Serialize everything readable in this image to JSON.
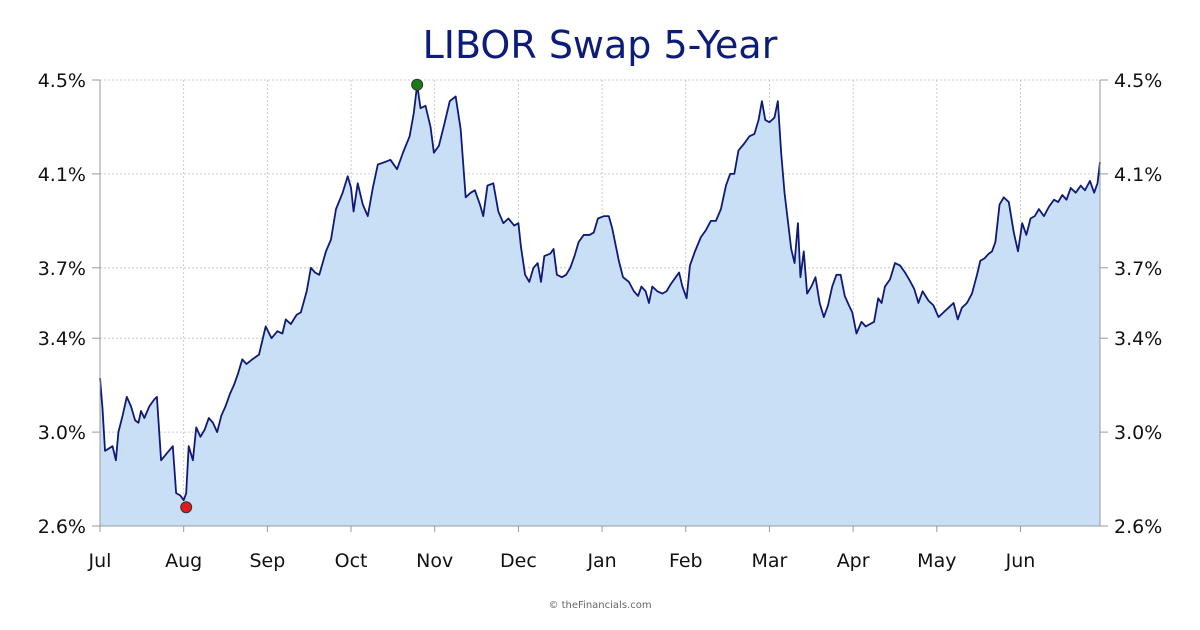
{
  "chart_data": {
    "type": "area",
    "title": "LIBOR Swap 5-Year",
    "credit": "© theFinancials.com",
    "ylim": [
      2.6,
      4.5
    ],
    "y_ticks": [
      4.5,
      4.1,
      3.7,
      3.4,
      3.0,
      2.6
    ],
    "y_tick_labels": [
      "4.5%",
      "4.1%",
      "3.7%",
      "3.4%",
      "3.0%",
      "2.6%"
    ],
    "y_axis_sides": "left-and-right",
    "grid": true,
    "x_ticks": [
      {
        "label": "Jul",
        "x": 0
      },
      {
        "label": "Aug",
        "x": 1
      },
      {
        "label": "Sep",
        "x": 2
      },
      {
        "label": "Oct",
        "x": 3
      },
      {
        "label": "Nov",
        "x": 4
      },
      {
        "label": "Dec",
        "x": 5
      },
      {
        "label": "Jan",
        "x": 6
      },
      {
        "label": "Feb",
        "x": 7
      },
      {
        "label": "Mar",
        "x": 8
      },
      {
        "label": "Apr",
        "x": 9
      },
      {
        "label": "May",
        "x": 10
      },
      {
        "label": "Jun",
        "x": 11
      }
    ],
    "xlim": [
      0,
      11.95
    ],
    "series": [
      {
        "values": [
          [
            0.0,
            3.23
          ],
          [
            0.03,
            3.1
          ],
          [
            0.06,
            2.92
          ],
          [
            0.15,
            2.94
          ],
          [
            0.19,
            2.88
          ],
          [
            0.22,
            3.0
          ],
          [
            0.27,
            3.07
          ],
          [
            0.32,
            3.15
          ],
          [
            0.37,
            3.11
          ],
          [
            0.42,
            3.05
          ],
          [
            0.46,
            3.04
          ],
          [
            0.49,
            3.09
          ],
          [
            0.53,
            3.06
          ],
          [
            0.59,
            3.11
          ],
          [
            0.65,
            3.14
          ],
          [
            0.68,
            3.15
          ],
          [
            0.73,
            2.88
          ],
          [
            0.8,
            2.91
          ],
          [
            0.87,
            2.94
          ],
          [
            0.91,
            2.74
          ],
          [
            0.96,
            2.73
          ],
          [
            1.0,
            2.71
          ],
          [
            1.03,
            2.74
          ],
          [
            1.06,
            2.94
          ],
          [
            1.11,
            2.88
          ],
          [
            1.15,
            3.02
          ],
          [
            1.2,
            2.98
          ],
          [
            1.25,
            3.01
          ],
          [
            1.3,
            3.06
          ],
          [
            1.35,
            3.04
          ],
          [
            1.4,
            3.0
          ],
          [
            1.45,
            3.07
          ],
          [
            1.5,
            3.11
          ],
          [
            1.55,
            3.16
          ],
          [
            1.6,
            3.2
          ],
          [
            1.65,
            3.25
          ],
          [
            1.7,
            3.31
          ],
          [
            1.75,
            3.29
          ],
          [
            1.82,
            3.31
          ],
          [
            1.9,
            3.33
          ],
          [
            1.98,
            3.45
          ],
          [
            2.05,
            3.4
          ],
          [
            2.12,
            3.43
          ],
          [
            2.18,
            3.42
          ],
          [
            2.22,
            3.48
          ],
          [
            2.28,
            3.46
          ],
          [
            2.35,
            3.5
          ],
          [
            2.4,
            3.51
          ],
          [
            2.47,
            3.6
          ],
          [
            2.52,
            3.7
          ],
          [
            2.57,
            3.68
          ],
          [
            2.62,
            3.67
          ],
          [
            2.7,
            3.77
          ],
          [
            2.76,
            3.82
          ],
          [
            2.82,
            3.95
          ],
          [
            2.9,
            4.02
          ],
          [
            2.96,
            4.09
          ],
          [
            3.0,
            4.04
          ],
          [
            3.03,
            3.94
          ],
          [
            3.08,
            4.06
          ],
          [
            3.14,
            3.97
          ],
          [
            3.2,
            3.92
          ],
          [
            3.26,
            4.04
          ],
          [
            3.32,
            4.14
          ],
          [
            3.4,
            4.15
          ],
          [
            3.47,
            4.16
          ],
          [
            3.55,
            4.12
          ],
          [
            3.62,
            4.19
          ],
          [
            3.7,
            4.26
          ],
          [
            3.75,
            4.36
          ],
          [
            3.79,
            4.48
          ],
          [
            3.83,
            4.38
          ],
          [
            3.89,
            4.39
          ],
          [
            3.95,
            4.3
          ],
          [
            3.99,
            4.19
          ],
          [
            4.05,
            4.22
          ],
          [
            4.12,
            4.32
          ],
          [
            4.18,
            4.41
          ],
          [
            4.25,
            4.43
          ],
          [
            4.31,
            4.29
          ],
          [
            4.37,
            4.0
          ],
          [
            4.43,
            4.02
          ],
          [
            4.48,
            4.03
          ],
          [
            4.54,
            3.97
          ],
          [
            4.58,
            3.92
          ],
          [
            4.63,
            4.05
          ],
          [
            4.7,
            4.06
          ],
          [
            4.76,
            3.94
          ],
          [
            4.82,
            3.89
          ],
          [
            4.88,
            3.91
          ],
          [
            4.95,
            3.88
          ],
          [
            5.0,
            3.89
          ],
          [
            5.03,
            3.79
          ],
          [
            5.08,
            3.67
          ],
          [
            5.13,
            3.64
          ],
          [
            5.18,
            3.7
          ],
          [
            5.23,
            3.72
          ],
          [
            5.27,
            3.64
          ],
          [
            5.31,
            3.75
          ],
          [
            5.38,
            3.76
          ],
          [
            5.42,
            3.78
          ],
          [
            5.46,
            3.67
          ],
          [
            5.52,
            3.66
          ],
          [
            5.57,
            3.67
          ],
          [
            5.62,
            3.7
          ],
          [
            5.67,
            3.75
          ],
          [
            5.72,
            3.81
          ],
          [
            5.78,
            3.84
          ],
          [
            5.85,
            3.84
          ],
          [
            5.9,
            3.85
          ],
          [
            5.95,
            3.91
          ],
          [
            6.02,
            3.92
          ],
          [
            6.08,
            3.92
          ],
          [
            6.12,
            3.87
          ],
          [
            6.16,
            3.8
          ],
          [
            6.2,
            3.73
          ],
          [
            6.25,
            3.66
          ],
          [
            6.32,
            3.64
          ],
          [
            6.38,
            3.6
          ],
          [
            6.43,
            3.58
          ],
          [
            6.47,
            3.62
          ],
          [
            6.52,
            3.6
          ],
          [
            6.56,
            3.55
          ],
          [
            6.6,
            3.62
          ],
          [
            6.66,
            3.6
          ],
          [
            6.72,
            3.59
          ],
          [
            6.77,
            3.6
          ],
          [
            6.82,
            3.63
          ],
          [
            6.88,
            3.66
          ],
          [
            6.92,
            3.68
          ],
          [
            6.96,
            3.62
          ],
          [
            7.01,
            3.57
          ],
          [
            7.05,
            3.71
          ],
          [
            7.11,
            3.77
          ],
          [
            7.18,
            3.83
          ],
          [
            7.24,
            3.86
          ],
          [
            7.3,
            3.9
          ],
          [
            7.36,
            3.9
          ],
          [
            7.42,
            3.95
          ],
          [
            7.48,
            4.05
          ],
          [
            7.53,
            4.1
          ],
          [
            7.58,
            4.1
          ],
          [
            7.63,
            4.2
          ],
          [
            7.7,
            4.23
          ],
          [
            7.76,
            4.26
          ],
          [
            7.82,
            4.27
          ],
          [
            7.87,
            4.33
          ],
          [
            7.91,
            4.41
          ],
          [
            7.95,
            4.33
          ],
          [
            8.0,
            4.32
          ],
          [
            8.06,
            4.34
          ],
          [
            8.1,
            4.41
          ],
          [
            8.14,
            4.19
          ],
          [
            8.18,
            4.02
          ],
          [
            8.22,
            3.9
          ],
          [
            8.26,
            3.78
          ],
          [
            8.3,
            3.72
          ],
          [
            8.34,
            3.89
          ],
          [
            8.37,
            3.66
          ],
          [
            8.41,
            3.77
          ],
          [
            8.45,
            3.59
          ],
          [
            8.5,
            3.62
          ],
          [
            8.55,
            3.66
          ],
          [
            8.6,
            3.55
          ],
          [
            8.65,
            3.49
          ],
          [
            8.7,
            3.54
          ],
          [
            8.75,
            3.62
          ],
          [
            8.8,
            3.67
          ],
          [
            8.85,
            3.67
          ],
          [
            8.9,
            3.58
          ],
          [
            8.95,
            3.54
          ],
          [
            8.99,
            3.51
          ],
          [
            9.04,
            3.42
          ],
          [
            9.1,
            3.47
          ],
          [
            9.15,
            3.45
          ],
          [
            9.2,
            3.46
          ],
          [
            9.25,
            3.47
          ],
          [
            9.3,
            3.57
          ],
          [
            9.34,
            3.55
          ],
          [
            9.38,
            3.62
          ],
          [
            9.44,
            3.65
          ],
          [
            9.5,
            3.72
          ],
          [
            9.56,
            3.71
          ],
          [
            9.62,
            3.68
          ],
          [
            9.67,
            3.65
          ],
          [
            9.73,
            3.61
          ],
          [
            9.78,
            3.55
          ],
          [
            9.83,
            3.6
          ],
          [
            9.9,
            3.56
          ],
          [
            9.96,
            3.54
          ],
          [
            10.02,
            3.49
          ],
          [
            10.08,
            3.51
          ],
          [
            10.14,
            3.53
          ],
          [
            10.2,
            3.55
          ],
          [
            10.25,
            3.48
          ],
          [
            10.3,
            3.53
          ],
          [
            10.36,
            3.55
          ],
          [
            10.42,
            3.59
          ],
          [
            10.48,
            3.67
          ],
          [
            10.52,
            3.73
          ],
          [
            10.57,
            3.74
          ],
          [
            10.62,
            3.76
          ],
          [
            10.66,
            3.77
          ],
          [
            10.7,
            3.81
          ],
          [
            10.75,
            3.97
          ],
          [
            10.8,
            4.0
          ],
          [
            10.86,
            3.98
          ],
          [
            10.92,
            3.85
          ],
          [
            10.97,
            3.77
          ],
          [
            11.02,
            3.89
          ],
          [
            11.07,
            3.84
          ],
          [
            11.12,
            3.91
          ],
          [
            11.17,
            3.92
          ],
          [
            11.22,
            3.95
          ],
          [
            11.28,
            3.92
          ],
          [
            11.34,
            3.96
          ],
          [
            11.4,
            3.99
          ],
          [
            11.45,
            3.98
          ],
          [
            11.5,
            4.01
          ],
          [
            11.55,
            3.99
          ],
          [
            11.6,
            4.04
          ],
          [
            11.66,
            4.02
          ],
          [
            11.72,
            4.05
          ],
          [
            11.77,
            4.03
          ],
          [
            11.83,
            4.07
          ],
          [
            11.88,
            4.02
          ],
          [
            11.92,
            4.06
          ],
          [
            11.95,
            4.15
          ]
        ]
      }
    ],
    "markers": [
      {
        "type": "low",
        "x": 1.03,
        "y": 2.68,
        "color": "#e01b1b"
      },
      {
        "type": "high",
        "x": 3.79,
        "y": 4.48,
        "color": "#1a7a1a"
      }
    ],
    "colors": {
      "line": "#0f1a78",
      "fill": "#c9dff6",
      "title": "#0c1c7a"
    }
  }
}
